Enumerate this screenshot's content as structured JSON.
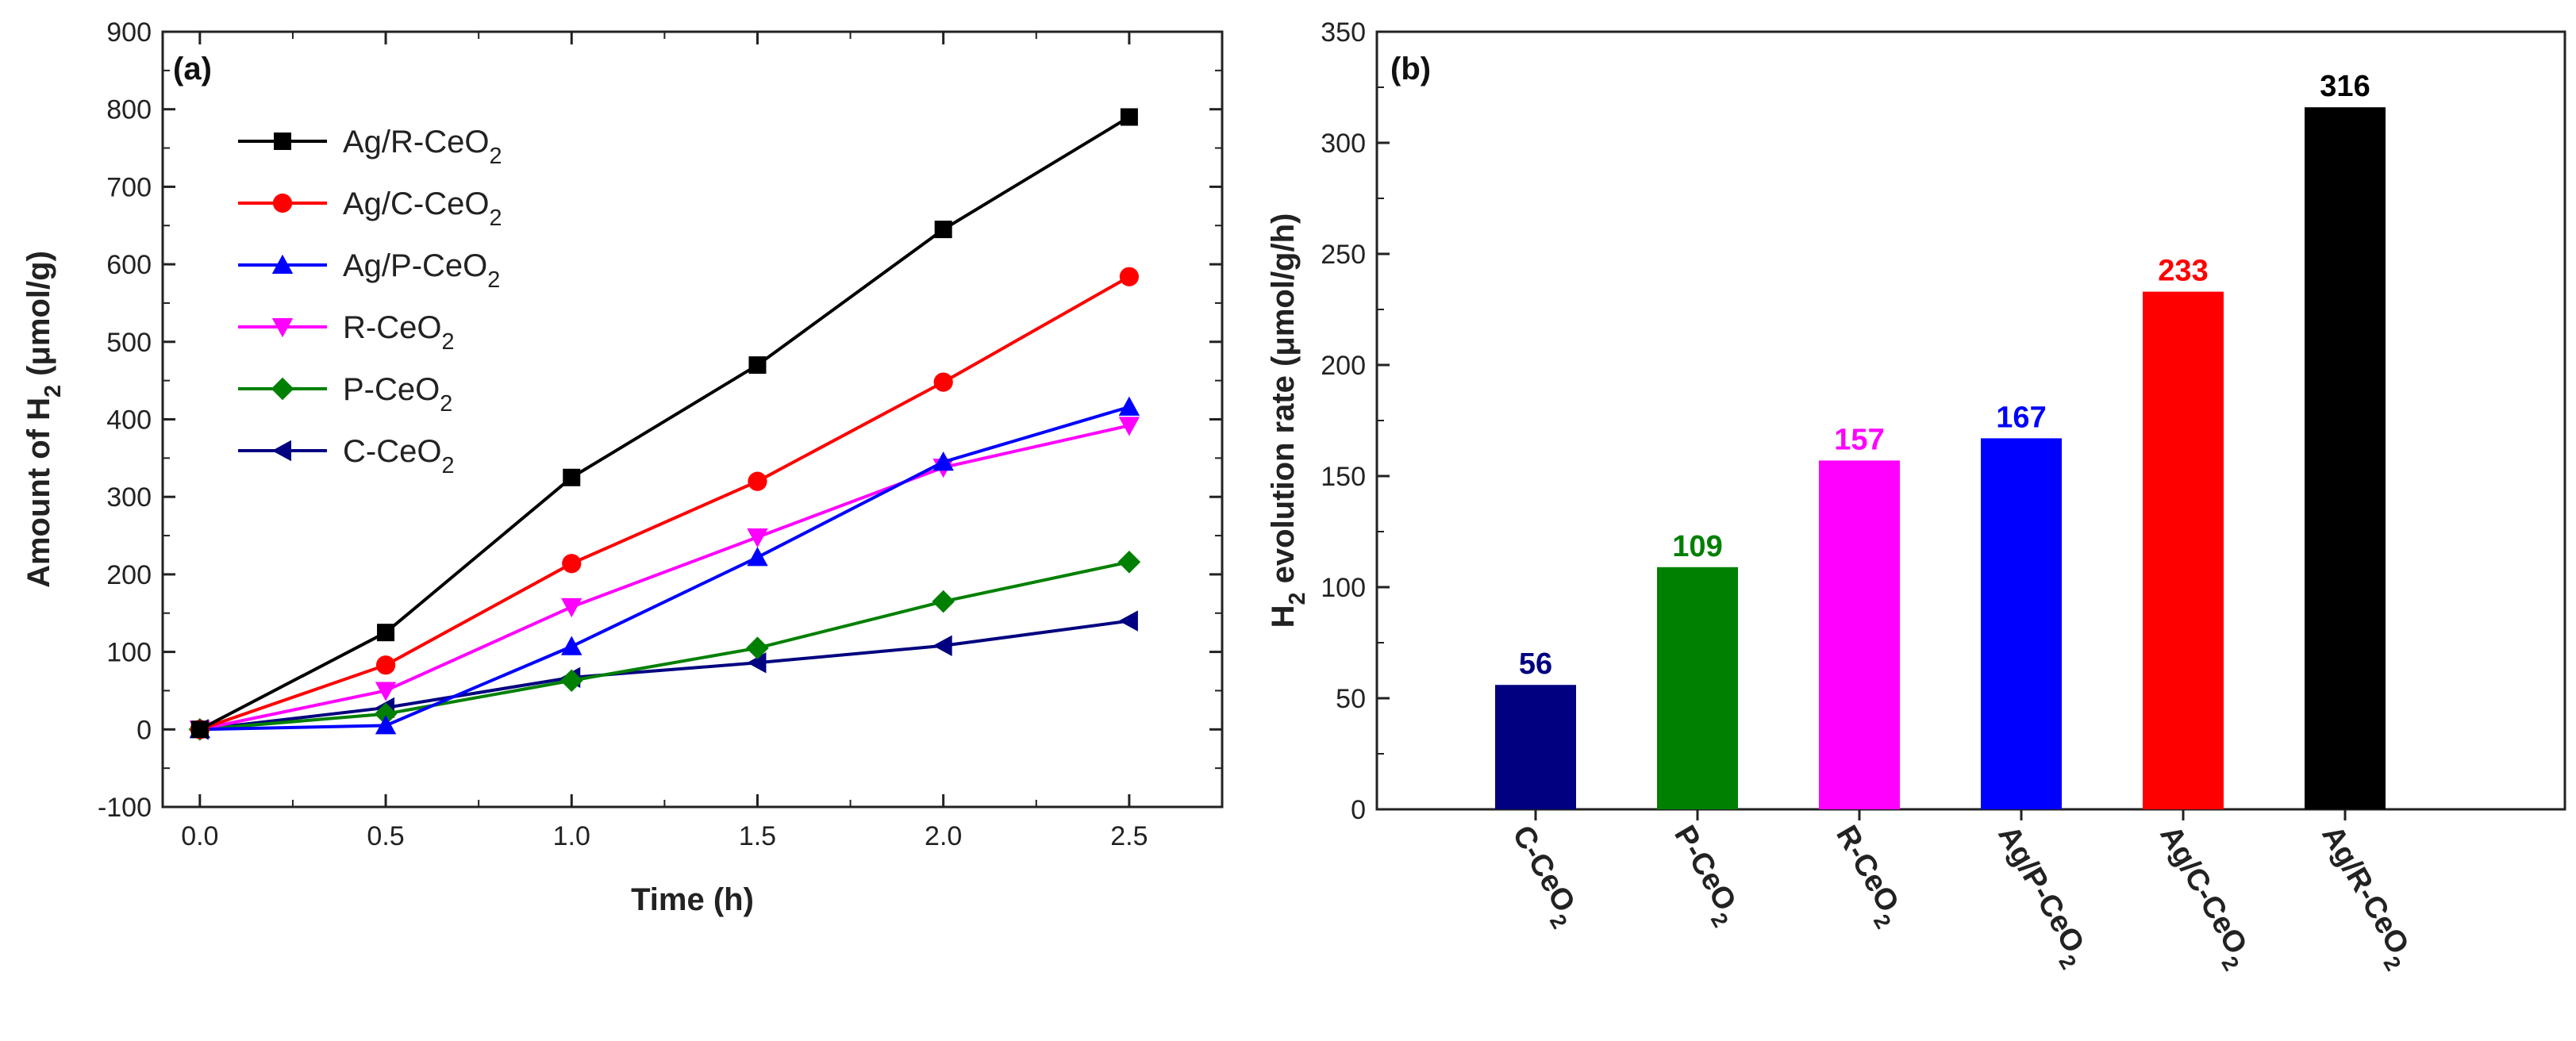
{
  "chart_data": [
    {
      "type": "line",
      "panel_label": "(a)",
      "title": "",
      "xlabel": "Time (h)",
      "ylabel": "Amount of H",
      "ylabel_sub": "2",
      "ylabel_unit": " (μmol/g)",
      "xlim": [
        -0.1,
        2.75
      ],
      "ylim": [
        -100,
        900
      ],
      "xticks": [
        "0.0",
        "0.5",
        "1.0",
        "1.5",
        "2.0",
        "2.5"
      ],
      "yticks": [
        "-100",
        "0",
        "100",
        "200",
        "300",
        "400",
        "500",
        "600",
        "700",
        "800",
        "900"
      ],
      "grid": false,
      "legend_position": "top-left",
      "x": [
        0.0,
        0.5,
        1.0,
        1.5,
        2.0,
        2.5
      ],
      "series": [
        {
          "name": "Ag/R-CeO",
          "sub": "2",
          "color": "#000000",
          "marker": "square",
          "values": [
            0,
            125,
            325,
            470,
            645,
            790
          ]
        },
        {
          "name": "Ag/C-CeO",
          "sub": "2",
          "color": "#ff0000",
          "marker": "circle",
          "values": [
            0,
            83,
            214,
            320,
            448,
            584
          ]
        },
        {
          "name": "Ag/P-CeO",
          "sub": "2",
          "color": "#0000ff",
          "marker": "triangle-up",
          "values": [
            0,
            5,
            107,
            222,
            345,
            416
          ]
        },
        {
          "name": "R-CeO",
          "sub": "2",
          "color": "#ff00ff",
          "marker": "triangle-down",
          "values": [
            0,
            50,
            158,
            248,
            338,
            392
          ]
        },
        {
          "name": "P-CeO",
          "sub": "2",
          "color": "#008000",
          "marker": "diamond",
          "values": [
            0,
            20,
            63,
            105,
            165,
            216
          ]
        },
        {
          "name": "C-CeO",
          "sub": "2",
          "color": "#000080",
          "marker": "triangle-left",
          "values": [
            0,
            28,
            67,
            86,
            108,
            140
          ]
        }
      ]
    },
    {
      "type": "bar",
      "panel_label": "(b)",
      "title": "",
      "xlabel": "",
      "ylabel_prefix": "H",
      "ylabel_sub": "2",
      "ylabel": " evolution rate (μmol/g/h)",
      "ylim": [
        0,
        350
      ],
      "yticks": [
        "0",
        "50",
        "100",
        "150",
        "200",
        "250",
        "300",
        "350"
      ],
      "grid": false,
      "categories": [
        {
          "name": "C-CeO",
          "sub": "2"
        },
        {
          "name": "P-CeO",
          "sub": "2"
        },
        {
          "name": "R-CeO",
          "sub": "2"
        },
        {
          "name": "Ag/P-CeO",
          "sub": "2"
        },
        {
          "name": "Ag/C-CeO",
          "sub": "2"
        },
        {
          "name": "Ag/R-CeO",
          "sub": "2"
        }
      ],
      "values": [
        56,
        109,
        157,
        167,
        233,
        316
      ],
      "labels": [
        "56",
        "109",
        "157",
        "167",
        "233",
        "316"
      ],
      "colors": [
        "#000080",
        "#008000",
        "#ff00ff",
        "#0000ff",
        "#ff0000",
        "#000000"
      ]
    }
  ]
}
